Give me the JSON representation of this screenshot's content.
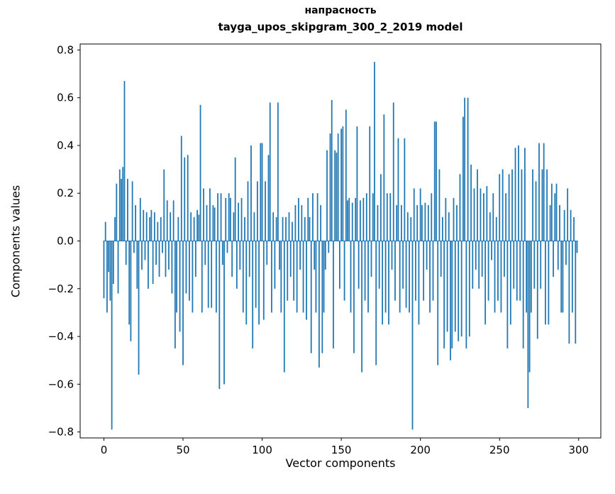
{
  "figure": {
    "title_line1": "напрасность",
    "title_line2": "tayga_upos_skipgram_300_2_2019 model",
    "xlabel": "Vector components",
    "ylabel": "Components values",
    "bar_color": "#1f77b4",
    "frame_color": "#000000",
    "background": "#ffffff"
  },
  "chart_data": {
    "type": "bar",
    "title": "напрасность\ntayga_upos_skipgram_300_2_2019 model",
    "xlabel": "Vector components",
    "ylabel": "Components values",
    "xlim": [
      -15,
      314
    ],
    "ylim": [
      -0.825,
      0.825
    ],
    "xticks": [
      0,
      50,
      100,
      150,
      200,
      250,
      300
    ],
    "yticks": [
      -0.8,
      -0.6,
      -0.4,
      -0.2,
      0.0,
      0.2,
      0.4,
      0.6,
      0.8
    ],
    "grid": false,
    "legend": null,
    "bar_color": "#1f77b4",
    "n_components": 300,
    "values": [
      -0.24,
      0.08,
      -0.3,
      -0.13,
      -0.25,
      -0.79,
      -0.18,
      0.1,
      0.24,
      -0.22,
      0.3,
      0.26,
      0.31,
      0.67,
      -0.1,
      0.26,
      -0.35,
      -0.42,
      0.25,
      -0.05,
      0.15,
      -0.2,
      -0.56,
      0.18,
      -0.12,
      0.13,
      -0.08,
      0.12,
      -0.2,
      0.1,
      0.13,
      -0.18,
      0.12,
      -0.1,
      0.08,
      -0.15,
      0.1,
      -0.05,
      0.3,
      -0.15,
      0.17,
      -0.12,
      0.12,
      -0.22,
      0.17,
      -0.45,
      -0.3,
      0.1,
      -0.38,
      0.44,
      -0.52,
      0.35,
      -0.22,
      0.36,
      -0.25,
      0.12,
      -0.3,
      0.1,
      -0.15,
      0.13,
      0.11,
      0.57,
      -0.3,
      0.22,
      -0.1,
      0.15,
      -0.28,
      0.22,
      -0.28,
      0.15,
      0.14,
      -0.3,
      0.2,
      -0.62,
      0.2,
      -0.1,
      -0.6,
      0.18,
      -0.05,
      0.2,
      0.18,
      -0.15,
      0.12,
      0.35,
      -0.2,
      0.16,
      -0.12,
      0.18,
      -0.3,
      0.1,
      -0.35,
      0.25,
      -0.15,
      0.4,
      -0.45,
      0.12,
      -0.28,
      0.25,
      -0.35,
      0.41,
      0.41,
      -0.33,
      0.25,
      -0.1,
      0.36,
      0.58,
      -0.3,
      0.12,
      -0.2,
      0.1,
      0.58,
      -0.12,
      -0.3,
      0.1,
      -0.55,
      0.1,
      -0.25,
      0.12,
      -0.15,
      0.08,
      -0.25,
      0.15,
      -0.3,
      0.18,
      -0.12,
      0.15,
      -0.3,
      0.1,
      -0.33,
      0.18,
      0.1,
      -0.47,
      0.2,
      -0.12,
      -0.3,
      0.2,
      -0.53,
      0.15,
      -0.47,
      -0.3,
      -0.12,
      0.38,
      -0.05,
      0.45,
      0.59,
      -0.45,
      0.38,
      0.37,
      0.45,
      -0.2,
      0.47,
      0.48,
      -0.25,
      0.55,
      0.17,
      0.18,
      -0.3,
      0.16,
      -0.47,
      0.18,
      0.48,
      -0.2,
      0.17,
      -0.55,
      0.18,
      -0.25,
      0.2,
      -0.3,
      0.48,
      -0.15,
      0.2,
      0.75,
      -0.52,
      0.15,
      -0.2,
      0.28,
      -0.35,
      0.53,
      -0.3,
      0.2,
      -0.35,
      0.2,
      -0.12,
      0.58,
      -0.25,
      0.15,
      0.43,
      -0.3,
      0.15,
      -0.2,
      0.43,
      -0.28,
      0.12,
      -0.3,
      0.1,
      -0.79,
      0.22,
      -0.25,
      0.15,
      -0.35,
      0.22,
      0.15,
      -0.25,
      0.16,
      -0.12,
      0.15,
      -0.3,
      0.2,
      -0.25,
      0.5,
      0.5,
      -0.52,
      0.3,
      -0.15,
      0.1,
      -0.45,
      0.18,
      -0.38,
      0.12,
      -0.5,
      -0.45,
      0.18,
      -0.38,
      0.15,
      -0.42,
      0.28,
      -0.4,
      0.52,
      0.6,
      -0.45,
      0.6,
      -0.4,
      0.32,
      -0.2,
      0.22,
      -0.12,
      0.3,
      -0.2,
      0.22,
      -0.15,
      0.2,
      -0.35,
      0.23,
      -0.25,
      0.12,
      -0.08,
      0.2,
      -0.3,
      0.1,
      -0.25,
      0.28,
      -0.3,
      0.3,
      -0.15,
      0.2,
      -0.45,
      0.28,
      -0.35,
      0.3,
      -0.2,
      0.39,
      -0.25,
      0.4,
      -0.25,
      0.3,
      -0.45,
      0.39,
      -0.3,
      -0.7,
      -0.55,
      -0.3,
      0.3,
      -0.2,
      0.25,
      -0.41,
      0.41,
      -0.2,
      0.3,
      0.41,
      -0.35,
      0.3,
      -0.35,
      0.15,
      0.24,
      -0.15,
      0.2,
      0.24,
      -0.12,
      0.15,
      -0.3,
      -0.3,
      0.13,
      -0.1,
      0.22,
      -0.43,
      0.13,
      -0.3,
      0.1,
      -0.43,
      -0.05
    ]
  }
}
